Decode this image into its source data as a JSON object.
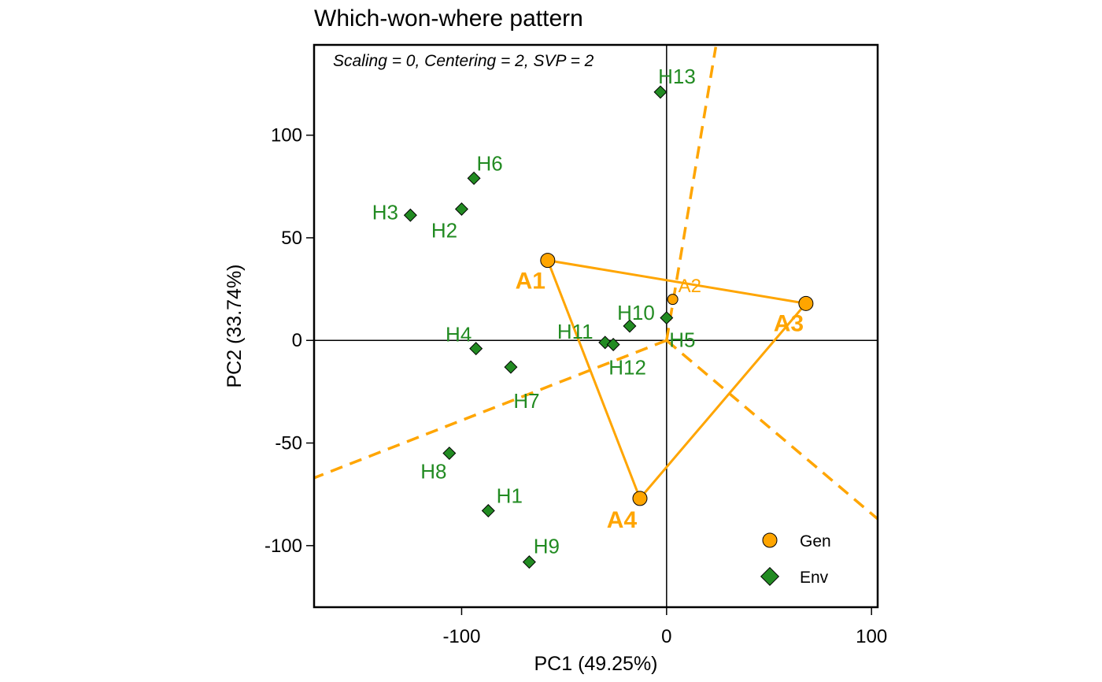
{
  "chart_data": {
    "type": "scatter",
    "title": "Which-won-where pattern",
    "subtitle": "Scaling = 0, Centering = 2, SVP = 2",
    "xlabel": "PC1 (49.25%)",
    "ylabel": "PC2 (33.74%)",
    "xlim": [
      -172,
      103
    ],
    "ylim": [
      -130,
      144
    ],
    "xticks": [
      -100,
      0,
      100
    ],
    "yticks": [
      -100,
      -50,
      0,
      50,
      100
    ],
    "grid": false,
    "legend": {
      "placement": "bottom-right",
      "entries": [
        "Gen",
        "Env"
      ]
    },
    "colors": {
      "gen": "#ffa500",
      "env": "#228b22",
      "axis": "#000000"
    },
    "series": [
      {
        "name": "Gen",
        "marker": "circle",
        "points": [
          {
            "label": "A1",
            "x": -58,
            "y": 39,
            "vertex": true
          },
          {
            "label": "A2",
            "x": 3,
            "y": 20,
            "vertex": false
          },
          {
            "label": "A3",
            "x": 68,
            "y": 18,
            "vertex": true
          },
          {
            "label": "A4",
            "x": -13,
            "y": -77,
            "vertex": true
          }
        ]
      },
      {
        "name": "Env",
        "marker": "diamond",
        "points": [
          {
            "label": "H1",
            "x": -87,
            "y": -83
          },
          {
            "label": "H2",
            "x": -100,
            "y": 64
          },
          {
            "label": "H3",
            "x": -125,
            "y": 61
          },
          {
            "label": "H4",
            "x": -93,
            "y": -4
          },
          {
            "label": "H5",
            "x": 0,
            "y": 11
          },
          {
            "label": "H6",
            "x": -94,
            "y": 79
          },
          {
            "label": "H7",
            "x": -76,
            "y": -13
          },
          {
            "label": "H8",
            "x": -106,
            "y": -55
          },
          {
            "label": "H9",
            "x": -67,
            "y": -108
          },
          {
            "label": "H10",
            "x": -18,
            "y": 7
          },
          {
            "label": "H11",
            "x": -30,
            "y": -1
          },
          {
            "label": "H12",
            "x": -26,
            "y": -2
          },
          {
            "label": "H13",
            "x": -3,
            "y": 121
          }
        ]
      }
    ],
    "polygon": [
      "A1",
      "A3",
      "A4"
    ],
    "sector_lines": [
      {
        "to": [
          24,
          143
        ]
      },
      {
        "to": [
          -172,
          -67
        ]
      },
      {
        "to": [
          103,
          -87
        ]
      }
    ]
  }
}
